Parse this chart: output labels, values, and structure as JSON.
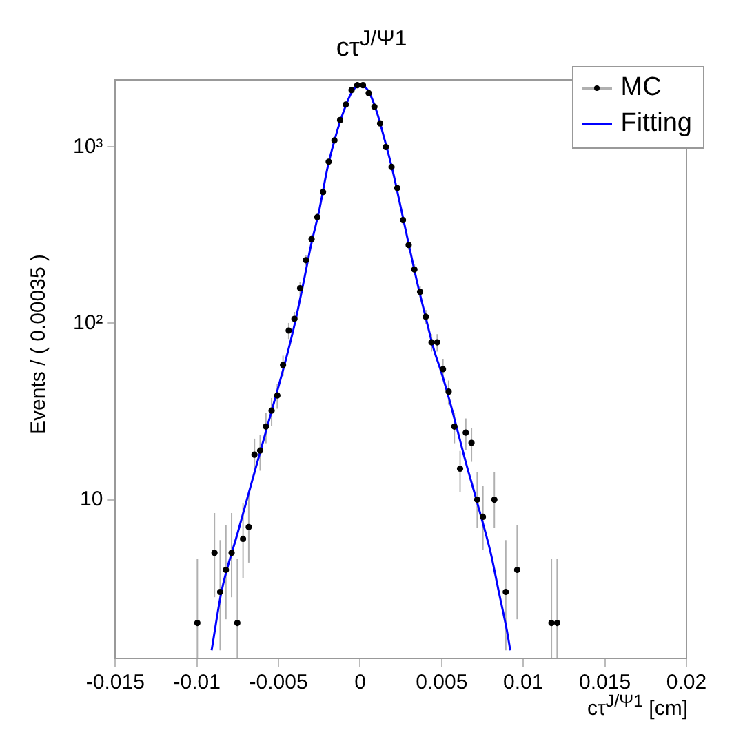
{
  "chart_data": {
    "type": "scatter",
    "title": "cτ$^{J/Ψ1}$",
    "xlabel": "cτ$^{J/Ψ1}$ [cm]",
    "ylabel": "Events / ( 0.00035 )",
    "xlim": [
      -0.015,
      0.02
    ],
    "xticks": [
      -0.015,
      -0.01,
      -0.005,
      0,
      0.005,
      0.01,
      0.015,
      0.02
    ],
    "ylim": [
      1.26,
      2400
    ],
    "yticks": [
      10,
      {
        "value": 100,
        "label": "10²"
      },
      {
        "value": 1000,
        "label": "10³"
      }
    ],
    "log": "y",
    "grid": false,
    "legend": "top right",
    "series": [
      {
        "name": "MC",
        "type": "scatter",
        "color": "#000000",
        "marker": "circle",
        "x": [
          -0.009975,
          -0.008925,
          -0.008575,
          -0.008225,
          -0.007875,
          -0.007525,
          -0.007175,
          -0.006825,
          -0.006475,
          -0.006125,
          -0.005775,
          -0.005425,
          -0.005075,
          -0.004725,
          -0.004375,
          -0.004025,
          -0.003675,
          -0.003325,
          -0.002975,
          -0.002625,
          -0.002275,
          -0.001925,
          -0.001575,
          -0.001225,
          -0.000875,
          -0.000525,
          -0.000175,
          0.000175,
          0.000525,
          0.000875,
          0.001225,
          0.001575,
          0.001925,
          0.002275,
          0.002625,
          0.002975,
          0.003325,
          0.003675,
          0.004025,
          0.004375,
          0.004725,
          0.005075,
          0.005425,
          0.005775,
          0.006125,
          0.006475,
          0.006825,
          0.007175,
          0.007525,
          0.008225,
          0.008925,
          0.009625,
          0.011725,
          0.012075
        ],
        "values": [
          2,
          5,
          3,
          4,
          5,
          2,
          6,
          7,
          18,
          19,
          26,
          32,
          39,
          58,
          91,
          106,
          158,
          228,
          300,
          400,
          555,
          825,
          1090,
          1420,
          1740,
          2100,
          2240,
          2240,
          2020,
          1690,
          1360,
          1000,
          770,
          585,
          385,
          278,
          202,
          151,
          109,
          78,
          78,
          55,
          41,
          26,
          15,
          24,
          21,
          10,
          8,
          10,
          3,
          4,
          2,
          2
        ],
        "errors": [
          [
            1.26,
            4.6
          ],
          [
            2.8,
            8.4
          ],
          [
            1.4,
            5.9
          ],
          [
            2.1,
            7.2
          ],
          [
            2.8,
            8.4
          ],
          [
            1.26,
            4.6
          ],
          [
            3.6,
            9.6
          ],
          [
            4.4,
            10.8
          ],
          4.2,
          4.4,
          5.1,
          5.7,
          6.2,
          7.6,
          9.5,
          10,
          13,
          15,
          17,
          20,
          24,
          29,
          33,
          38,
          42,
          46,
          47,
          47,
          45,
          41,
          37,
          32,
          28,
          24,
          20,
          17,
          14,
          12,
          10,
          8.8,
          8.8,
          7.4,
          6.4,
          5.1,
          3.9,
          4.9,
          4.6,
          [
            6.9,
            14.3
          ],
          [
            5.2,
            12
          ],
          [
            6.9,
            14.3
          ],
          [
            1.4,
            5.9
          ],
          [
            2.1,
            7.2
          ],
          [
            1.26,
            4.6
          ],
          [
            1.26,
            4.6
          ]
        ]
      },
      {
        "name": "Fitting",
        "type": "line",
        "color": "#0000ff",
        "marker": "none",
        "x": [
          -0.0091,
          -0.0085,
          -0.0075,
          -0.0065,
          -0.0055,
          -0.0045,
          -0.004,
          -0.0035,
          -0.003,
          -0.0025,
          -0.002,
          -0.0015,
          -0.001,
          -0.0005,
          0,
          0.0005,
          0.001,
          0.0015,
          0.002,
          0.0025,
          0.003,
          0.0035,
          0.004,
          0.0045,
          0.005,
          0.0055,
          0.006,
          0.0065,
          0.007,
          0.0075,
          0.008,
          0.0085,
          0.009,
          0.0092
        ],
        "values": [
          1.4,
          3,
          6.5,
          14,
          30,
          65,
          100,
          165,
          280,
          440,
          760,
          1150,
          1600,
          2050,
          2250,
          2080,
          1600,
          1100,
          730,
          450,
          275,
          170,
          110,
          72,
          52,
          36,
          24,
          16,
          11,
          7.5,
          5,
          3,
          1.8,
          1.4
        ]
      }
    ]
  }
}
